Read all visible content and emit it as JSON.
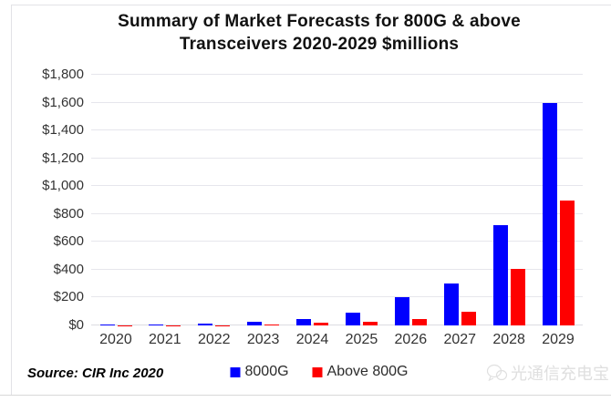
{
  "chart_data": {
    "type": "bar",
    "title": "Summary of Market Forecasts for 800G & above Transceivers 2020-2029 $millions",
    "title_lines": [
      "Summary of Market Forecasts for 800G & above",
      "Transceivers 2020-2029 $millions"
    ],
    "categories": [
      "2020",
      "2021",
      "2022",
      "2023",
      "2024",
      "2025",
      "2026",
      "2027",
      "2028",
      "2029"
    ],
    "series": [
      {
        "name": "8000G",
        "color": "#0000fe",
        "values": [
          8,
          8,
          15,
          25,
          45,
          90,
          200,
          300,
          720,
          1600
        ]
      },
      {
        "name": "Above 800G",
        "color": "#fe0000",
        "values": [
          1,
          1,
          2,
          8,
          18,
          28,
          48,
          100,
          405,
          900
        ]
      }
    ],
    "ylabel": "$millions",
    "ylim": [
      0,
      1800
    ],
    "ytick_step": 200,
    "ytick_labels": [
      "$0",
      "$200",
      "$400",
      "$600",
      "$800",
      "$1,000",
      "$1,200",
      "$1,400",
      "$1,600",
      "$1,800"
    ],
    "grid": true,
    "legend_position": "bottom"
  },
  "footer": {
    "source": "Source: CIR Inc 2020"
  },
  "watermark": {
    "text": "光通信充电宝",
    "icon": "wechat-icon"
  }
}
